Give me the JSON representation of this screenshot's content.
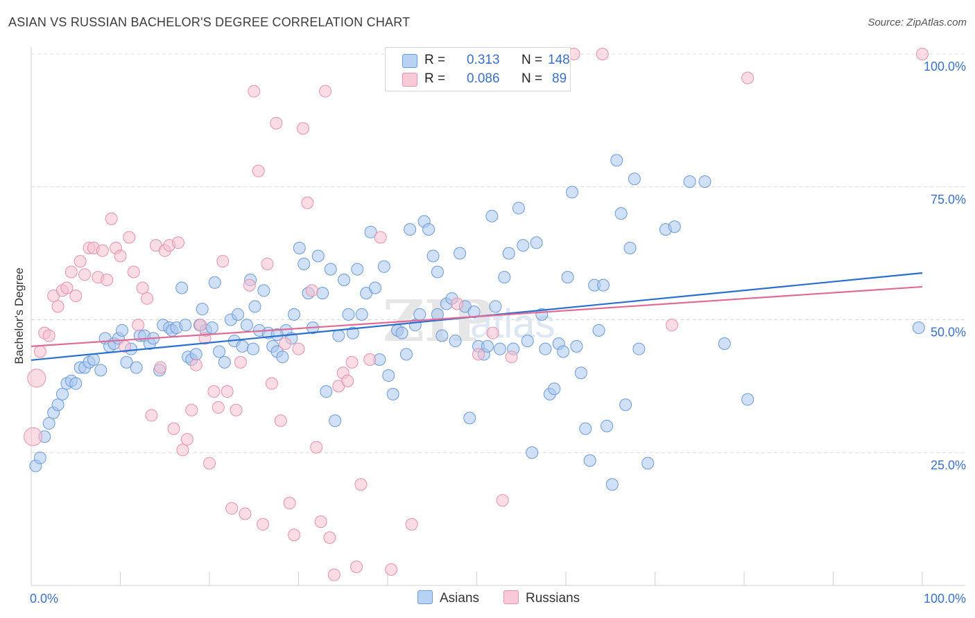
{
  "header": {
    "title": "ASIAN VS RUSSIAN BACHELOR'S DEGREE CORRELATION CHART",
    "source": "Source: ZipAtlas.com"
  },
  "legend": {
    "asians": {
      "r_label": "R =",
      "r_value": "0.313",
      "n_label": "N =",
      "n_value": "148"
    },
    "russians": {
      "r_label": "R =",
      "r_value": "0.086",
      "n_label": "N =",
      "n_value": "89"
    }
  },
  "bottom_legend": {
    "asians": "Asians",
    "russians": "Russians"
  },
  "watermark": {
    "zip": "ZIP",
    "atlas": "atlas"
  },
  "colors": {
    "asian_fill": "#a9c6ee",
    "asian_stroke": "#6a9ad8",
    "asian_line": "#2a6fcf",
    "russian_fill": "#f6bfcf",
    "russian_stroke": "#e890ac",
    "russian_line": "#e06a93",
    "tick_text": "#3b6fc8",
    "grid": "#dcdcdc"
  },
  "chart_data": {
    "type": "scatter",
    "title": "ASIAN VS RUSSIAN BACHELOR'S DEGREE CORRELATION CHART",
    "xlabel": "",
    "ylabel": "Bachelor's Degree",
    "xlim": [
      0,
      100
    ],
    "ylim": [
      0,
      100
    ],
    "x_tick_labels": [
      {
        "value": 0,
        "label": "0.0%"
      },
      {
        "value": 100,
        "label": "100.0%"
      }
    ],
    "y_tick_labels": [
      {
        "value": 25,
        "label": "25.0%"
      },
      {
        "value": 50,
        "label": "50.0%"
      },
      {
        "value": 75,
        "label": "75.0%"
      },
      {
        "value": 100,
        "label": "100.0%"
      }
    ],
    "trendlines": [
      {
        "series": "Asians",
        "x": [
          0,
          100
        ],
        "y": [
          42.4,
          58.8
        ]
      },
      {
        "series": "Russians",
        "x": [
          0,
          100
        ],
        "y": [
          45.0,
          56.2
        ]
      }
    ],
    "series": [
      {
        "name": "Asians",
        "points": [
          [
            0.5,
            22.5
          ],
          [
            1,
            24
          ],
          [
            1.5,
            28
          ],
          [
            2,
            30.5
          ],
          [
            2.5,
            32.5
          ],
          [
            3,
            34
          ],
          [
            3.5,
            36
          ],
          [
            4,
            38
          ],
          [
            4.5,
            38.5
          ],
          [
            5,
            38
          ],
          [
            5.5,
            41
          ],
          [
            6,
            41
          ],
          [
            6.5,
            42
          ],
          [
            7,
            42.5
          ],
          [
            7.8,
            40.5
          ],
          [
            8.3,
            46.5
          ],
          [
            8.8,
            45
          ],
          [
            9.3,
            45.5
          ],
          [
            9.8,
            46.5
          ],
          [
            10.2,
            48
          ],
          [
            10.7,
            42
          ],
          [
            11.2,
            44.5
          ],
          [
            11.8,
            41
          ],
          [
            12.2,
            47
          ],
          [
            12.7,
            47
          ],
          [
            13.3,
            45.5
          ],
          [
            13.7,
            46.5
          ],
          [
            14.4,
            40.5
          ],
          [
            14.8,
            49
          ],
          [
            15.5,
            48.5
          ],
          [
            15.8,
            48
          ],
          [
            16.3,
            48.5
          ],
          [
            16.9,
            56
          ],
          [
            17.3,
            49
          ],
          [
            17.6,
            43
          ],
          [
            18,
            42.5
          ],
          [
            18.5,
            43.5
          ],
          [
            18.9,
            49
          ],
          [
            19.2,
            52
          ],
          [
            19.6,
            48
          ],
          [
            20.3,
            48.5
          ],
          [
            20.6,
            57
          ],
          [
            21.1,
            44
          ],
          [
            21.7,
            42
          ],
          [
            22.4,
            50
          ],
          [
            22.8,
            46
          ],
          [
            23.2,
            51
          ],
          [
            23.7,
            45
          ],
          [
            24.2,
            49
          ],
          [
            24.6,
            57.5
          ],
          [
            25.1,
            52.5
          ],
          [
            25.6,
            48
          ],
          [
            26.1,
            55.5
          ],
          [
            26.6,
            47.5
          ],
          [
            27.1,
            45
          ],
          [
            27.6,
            44
          ],
          [
            28.2,
            43
          ],
          [
            28.6,
            48
          ],
          [
            29.2,
            46.5
          ],
          [
            29.5,
            51
          ],
          [
            30.1,
            63.5
          ],
          [
            30.6,
            60.5
          ],
          [
            31.1,
            55
          ],
          [
            31.6,
            48.5
          ],
          [
            32.2,
            62
          ],
          [
            32.7,
            55
          ],
          [
            33.1,
            36.5
          ],
          [
            33.6,
            59.5
          ],
          [
            34.1,
            31
          ],
          [
            34.5,
            47
          ],
          [
            35.1,
            57.5
          ],
          [
            35.6,
            51
          ],
          [
            36.1,
            47.5
          ],
          [
            36.6,
            59.5
          ],
          [
            37.1,
            51
          ],
          [
            37.6,
            55
          ],
          [
            38.1,
            66.5
          ],
          [
            38.6,
            56
          ],
          [
            39.1,
            42.5
          ],
          [
            39.6,
            60
          ],
          [
            40.1,
            39.5
          ],
          [
            40.6,
            36
          ],
          [
            41.1,
            48
          ],
          [
            41.6,
            47.5
          ],
          [
            42.1,
            43.5
          ],
          [
            42.5,
            67
          ],
          [
            43.1,
            49
          ],
          [
            43.6,
            51
          ],
          [
            44.1,
            68.5
          ],
          [
            44.6,
            67
          ],
          [
            45.1,
            62
          ],
          [
            45.6,
            59
          ],
          [
            46.1,
            47
          ],
          [
            46.6,
            53
          ],
          [
            47.2,
            54
          ],
          [
            47.6,
            46
          ],
          [
            48.1,
            62.5
          ],
          [
            48.7,
            52.5
          ],
          [
            49.2,
            31.5
          ],
          [
            49.7,
            51.5
          ],
          [
            50.2,
            45
          ],
          [
            50.8,
            43.5
          ],
          [
            51.2,
            45
          ],
          [
            51.7,
            69.5
          ],
          [
            52.1,
            52.5
          ],
          [
            52.6,
            44.5
          ],
          [
            53.1,
            58
          ],
          [
            53.6,
            62.5
          ],
          [
            54.1,
            44.5
          ],
          [
            54.7,
            71
          ],
          [
            55.2,
            64
          ],
          [
            55.7,
            46
          ],
          [
            56.2,
            25
          ],
          [
            56.7,
            64.5
          ],
          [
            57.3,
            51
          ],
          [
            57.7,
            44.5
          ],
          [
            58.2,
            36
          ],
          [
            58.7,
            37
          ],
          [
            59.2,
            45.5
          ],
          [
            59.7,
            44
          ],
          [
            60.2,
            58
          ],
          [
            60.7,
            74
          ],
          [
            61.2,
            45
          ],
          [
            61.7,
            40
          ],
          [
            62.2,
            29.5
          ],
          [
            62.7,
            23.5
          ],
          [
            63.2,
            56.5
          ],
          [
            63.7,
            48
          ],
          [
            64.2,
            56.5
          ],
          [
            64.6,
            30
          ],
          [
            65.2,
            19
          ],
          [
            65.7,
            80
          ],
          [
            66.2,
            70
          ],
          [
            66.7,
            34
          ],
          [
            67.2,
            63.5
          ],
          [
            67.7,
            76.5
          ],
          [
            68.2,
            44.5
          ],
          [
            69.2,
            23
          ],
          [
            71.2,
            67
          ],
          [
            72.2,
            67.5
          ],
          [
            73.9,
            76
          ],
          [
            75.6,
            76
          ],
          [
            77.8,
            45.5
          ],
          [
            80.4,
            35
          ],
          [
            99.6,
            48.5
          ],
          [
            45.6,
            51
          ],
          [
            27.6,
            47.2
          ],
          [
            24.9,
            44.5
          ]
        ]
      },
      {
        "name": "Russians",
        "points": [
          [
            0.2,
            28
          ],
          [
            0.6,
            39
          ],
          [
            1,
            44
          ],
          [
            1.5,
            47.5
          ],
          [
            2,
            47
          ],
          [
            2.5,
            54.5
          ],
          [
            3,
            52.5
          ],
          [
            3.5,
            55.5
          ],
          [
            4,
            56
          ],
          [
            4.5,
            59
          ],
          [
            5,
            54.5
          ],
          [
            5.5,
            61
          ],
          [
            6,
            58.5
          ],
          [
            6.5,
            63.5
          ],
          [
            7,
            63.5
          ],
          [
            7.5,
            58
          ],
          [
            8,
            63
          ],
          [
            8.5,
            57.5
          ],
          [
            9,
            69
          ],
          [
            9.5,
            63.5
          ],
          [
            10,
            62
          ],
          [
            10.5,
            45
          ],
          [
            11,
            65.5
          ],
          [
            11.5,
            59
          ],
          [
            12,
            49
          ],
          [
            12.5,
            56
          ],
          [
            13,
            54
          ],
          [
            13.5,
            32
          ],
          [
            14,
            64
          ],
          [
            14.5,
            41
          ],
          [
            15,
            63
          ],
          [
            15.5,
            64
          ],
          [
            16,
            29.5
          ],
          [
            16.5,
            64.5
          ],
          [
            17,
            25.5
          ],
          [
            17.5,
            27.5
          ],
          [
            18,
            33
          ],
          [
            18.5,
            41.5
          ],
          [
            19,
            49
          ],
          [
            19.5,
            46.5
          ],
          [
            20,
            23
          ],
          [
            20.5,
            36.5
          ],
          [
            21,
            33.5
          ],
          [
            21.5,
            61
          ],
          [
            22,
            36.5
          ],
          [
            22.5,
            14.5
          ],
          [
            23,
            33
          ],
          [
            23.5,
            42
          ],
          [
            24,
            13.5
          ],
          [
            24.5,
            56.5
          ],
          [
            25,
            93
          ],
          [
            25.5,
            78
          ],
          [
            26,
            11.5
          ],
          [
            26.5,
            60.5
          ],
          [
            27,
            38
          ],
          [
            27.5,
            87
          ],
          [
            28,
            31
          ],
          [
            28.5,
            45.5
          ],
          [
            29,
            15.5
          ],
          [
            29.5,
            9.5
          ],
          [
            30,
            44.5
          ],
          [
            30.5,
            86
          ],
          [
            31,
            72
          ],
          [
            31.5,
            55.5
          ],
          [
            32,
            26
          ],
          [
            32.5,
            12
          ],
          [
            33,
            93
          ],
          [
            33.5,
            9
          ],
          [
            34,
            2
          ],
          [
            34.5,
            37.5
          ],
          [
            35,
            40
          ],
          [
            35.5,
            38.5
          ],
          [
            36,
            42
          ],
          [
            36.5,
            3.5
          ],
          [
            37,
            19
          ],
          [
            38,
            42.5
          ],
          [
            39.2,
            65.5
          ],
          [
            40.4,
            3
          ],
          [
            42.7,
            11.5
          ],
          [
            47.8,
            53
          ],
          [
            50.2,
            43.5
          ],
          [
            51.8,
            47.5
          ],
          [
            52.9,
            16
          ],
          [
            53.9,
            43
          ],
          [
            60.9,
            100
          ],
          [
            64.1,
            100
          ],
          [
            71.9,
            49
          ],
          [
            80.4,
            95.5
          ],
          [
            100,
            100
          ]
        ]
      }
    ]
  }
}
